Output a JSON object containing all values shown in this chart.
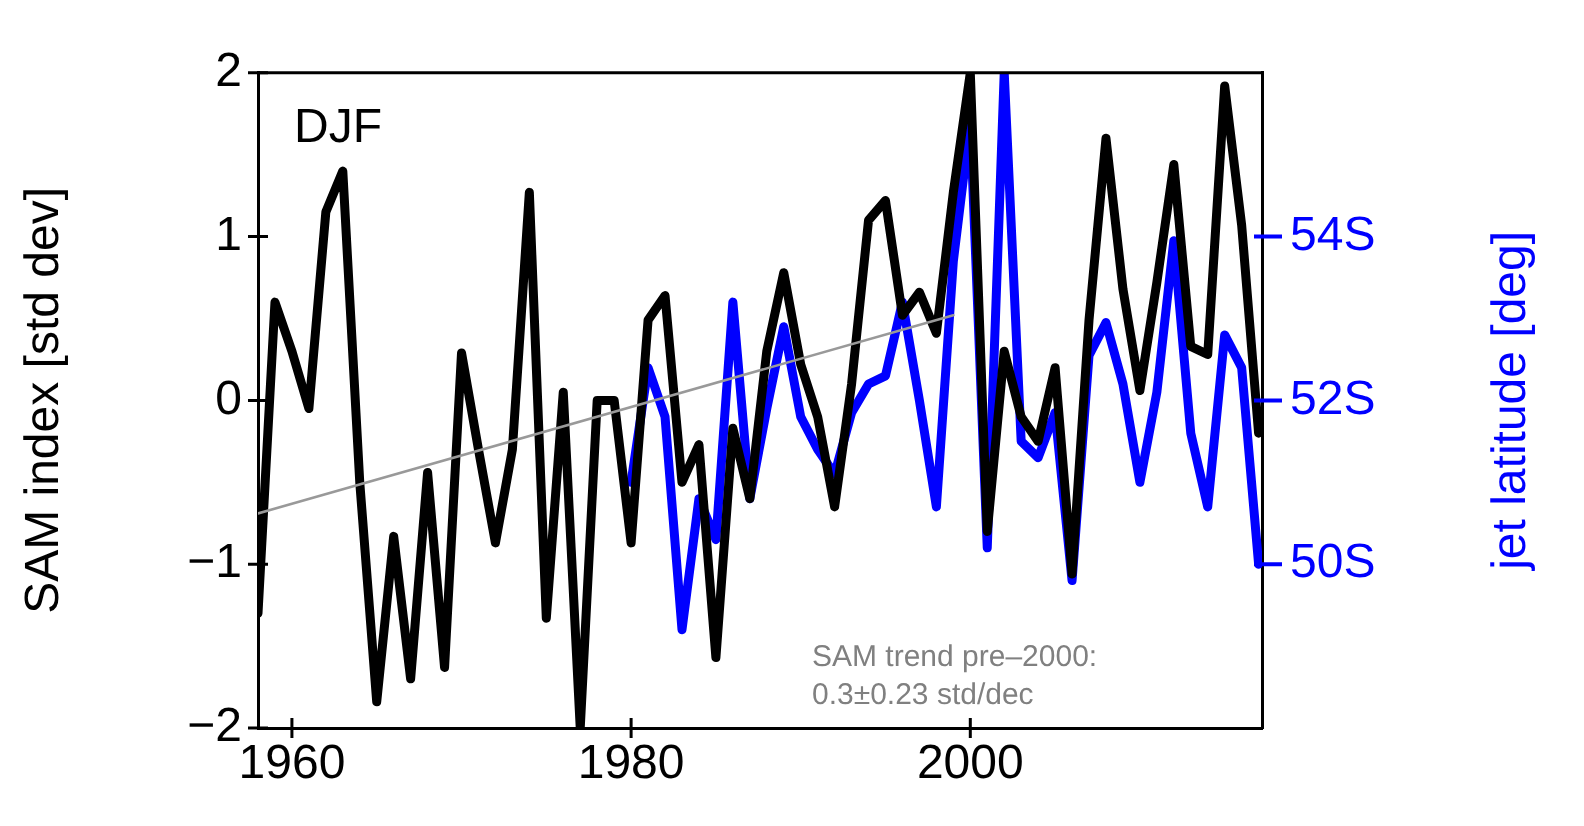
{
  "chart_data": {
    "type": "line",
    "ylabel": "SAM index [std dev]",
    "y2label": "jet latitude [deg]",
    "annotations": [
      "DJF",
      "SAM trend pre–2000:",
      "0.3±0.23 std/dec"
    ],
    "x": [
      1958,
      1959,
      1960,
      1961,
      1962,
      1963,
      1964,
      1965,
      1966,
      1967,
      1968,
      1969,
      1970,
      1971,
      1972,
      1973,
      1974,
      1975,
      1976,
      1977,
      1978,
      1979,
      1980,
      1981,
      1982,
      1983,
      1984,
      1985,
      1986,
      1987,
      1988,
      1989,
      1990,
      1991,
      1992,
      1993,
      1994,
      1995,
      1996,
      1997,
      1998,
      1999,
      2000,
      2001,
      2002,
      2003,
      2004,
      2005,
      2006,
      2007,
      2008,
      2009,
      2010,
      2011,
      2012,
      2013,
      2014,
      2015,
      2016,
      2017
    ],
    "series": [
      {
        "color": "#000000",
        "values": [
          -1.3,
          0.6,
          0.3,
          -0.05,
          1.15,
          1.4,
          -0.5,
          -1.84,
          -0.83,
          -1.7,
          -0.44,
          -1.63,
          0.29,
          -0.3,
          -0.87,
          -0.3,
          1.27,
          -1.33,
          0.05,
          -2.0,
          0.0,
          0.0,
          -0.87,
          0.49,
          0.64,
          -0.5,
          -0.27,
          -1.57,
          -0.17,
          -0.6,
          0.3,
          0.78,
          0.22,
          -0.1,
          -0.65,
          0.1,
          1.1,
          1.22,
          0.52,
          0.66,
          0.41,
          1.27,
          2.0,
          -0.8,
          0.3,
          -0.1,
          -0.25,
          0.2,
          -1.06,
          0.49,
          1.6,
          0.68,
          0.06,
          0.72,
          1.44,
          0.33,
          0.28,
          1.92,
          1.07,
          -0.2
        ]
      },
      {
        "color": "#0000ff",
        "axis": "y2",
        "values": [
          null,
          null,
          null,
          null,
          null,
          null,
          null,
          null,
          null,
          null,
          null,
          null,
          null,
          null,
          null,
          null,
          null,
          null,
          null,
          null,
          null,
          null,
          51.0,
          52.4,
          51.8,
          49.2,
          50.8,
          50.3,
          53.2,
          50.8,
          51.9,
          52.9,
          51.8,
          51.4,
          51.1,
          51.85,
          52.2,
          52.3,
          53.2,
          52.0,
          50.7,
          53.7,
          55.4,
          50.2,
          56.0,
          51.5,
          51.3,
          51.85,
          49.8,
          52.55,
          52.95,
          52.2,
          51.0,
          52.1,
          53.95,
          51.6,
          50.7,
          52.8,
          52.4,
          50.0
        ]
      },
      {
        "type": "line",
        "color": "#999999",
        "x": [
          1958,
          1999
        ],
        "values": [
          -0.69,
          0.52
        ]
      }
    ],
    "xlim": [
      1958,
      2017.2
    ],
    "xticks": [
      1960,
      1980,
      2000
    ],
    "ylim": [
      -2,
      2
    ],
    "yticks": [
      -2,
      -1,
      0,
      1,
      2
    ],
    "y2lim": [
      48,
      56
    ],
    "y2ticks": [
      {
        "value": 50,
        "label": "50S"
      },
      {
        "value": 52,
        "label": "52S"
      },
      {
        "value": 54,
        "label": "54S"
      }
    ],
    "grid": false,
    "legend": false,
    "marker": "none",
    "line_style": "solid"
  }
}
